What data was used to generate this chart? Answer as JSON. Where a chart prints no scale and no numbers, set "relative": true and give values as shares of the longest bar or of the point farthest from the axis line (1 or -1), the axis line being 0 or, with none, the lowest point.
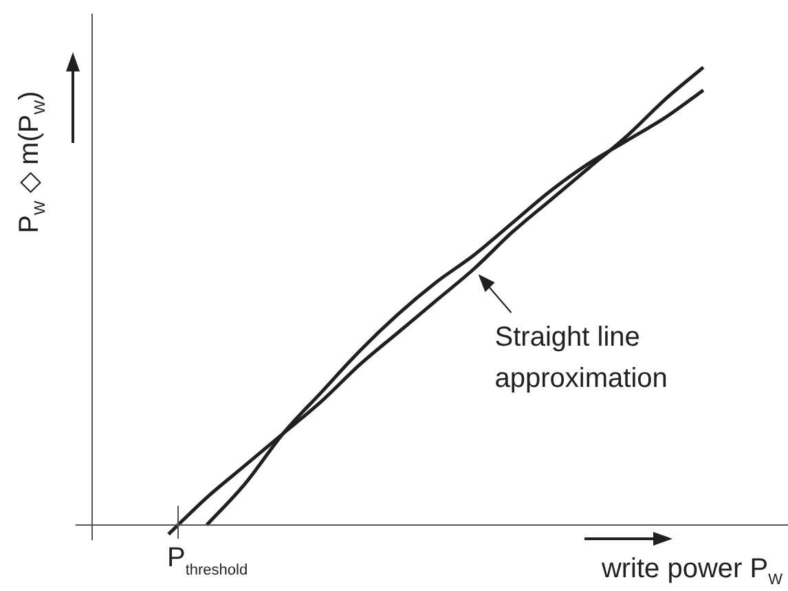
{
  "chart_data": {
    "type": "line",
    "relative": true,
    "legend": false,
    "marker": "none",
    "line_style": "solid",
    "categories": [
      null,
      null,
      null,
      null,
      null,
      null,
      null,
      null,
      null,
      null,
      null,
      null,
      null,
      null,
      null,
      null,
      null,
      null,
      null
    ],
    "series": [
      {
        "color": "#231f20",
        "values": [
          null,
          null,
          null,
          0.0,
          0.09,
          0.2,
          0.29,
          0.38,
          0.46,
          0.53,
          0.59,
          0.66,
          0.73,
          0.79,
          0.84,
          0.89,
          0.95,
          null,
          null
        ]
      },
      {
        "color": "#231f20",
        "values": [
          null,
          null,
          -0.02,
          0.06,
          0.13,
          0.2,
          0.27,
          0.35,
          0.42,
          0.49,
          0.56,
          0.64,
          0.71,
          0.78,
          0.85,
          0.93,
          1.0,
          null,
          null
        ]
      }
    ],
    "xlabel": "write power P$_{W}$",
    "ylabel": "P$_{W}$ ◇ m(P$_{W}$)",
    "annotations": [
      "P$_{threshold}$",
      "Straight line approximation"
    ]
  }
}
